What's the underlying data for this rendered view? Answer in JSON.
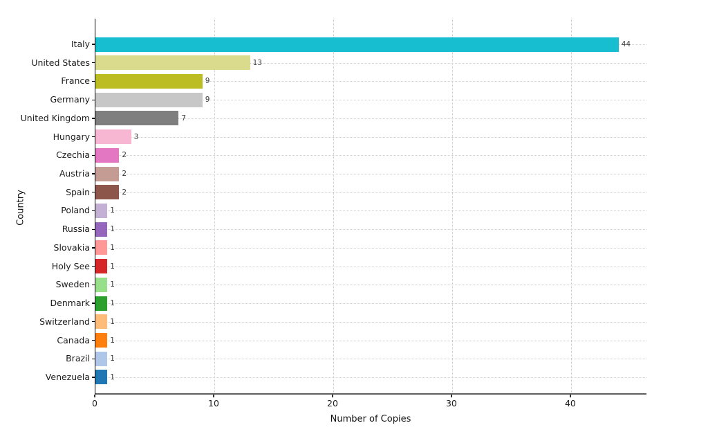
{
  "chart_data": {
    "type": "bar",
    "orientation": "horizontal",
    "title": "",
    "xlabel": "Number of Copies",
    "ylabel": "Country",
    "categories": [
      "Italy",
      "United States",
      "France",
      "Germany",
      "United Kingdom",
      "Hungary",
      "Czechia",
      "Austria",
      "Spain",
      "Poland",
      "Russia",
      "Slovakia",
      "Holy See",
      "Sweden",
      "Denmark",
      "Switzerland",
      "Canada",
      "Brazil",
      "Venezuela"
    ],
    "values": [
      44,
      13,
      9,
      9,
      7,
      3,
      2,
      2,
      2,
      1,
      1,
      1,
      1,
      1,
      1,
      1,
      1,
      1,
      1
    ],
    "value_labels": [
      "44",
      "13",
      "9",
      "9",
      "7",
      "3",
      "2",
      "2",
      "2",
      "1",
      "1",
      "1",
      "1",
      "1",
      "1",
      "1",
      "1",
      "1",
      "1"
    ],
    "bar_colors": [
      "#17becf",
      "#dbdb8d",
      "#bcbd22",
      "#c7c7c7",
      "#7f7f7f",
      "#f7b6d2",
      "#e377c2",
      "#c49c94",
      "#8c564b",
      "#c5b0d5",
      "#9467bd",
      "#ff9896",
      "#d62728",
      "#98df8a",
      "#2ca02c",
      "#ffbb78",
      "#ff7f0e",
      "#aec7e8",
      "#1f77b4"
    ],
    "xticks": [
      0,
      10,
      20,
      30,
      40
    ],
    "xlim": [
      0,
      46.4
    ],
    "grid": "dotted-both-axes",
    "legend": "none"
  }
}
